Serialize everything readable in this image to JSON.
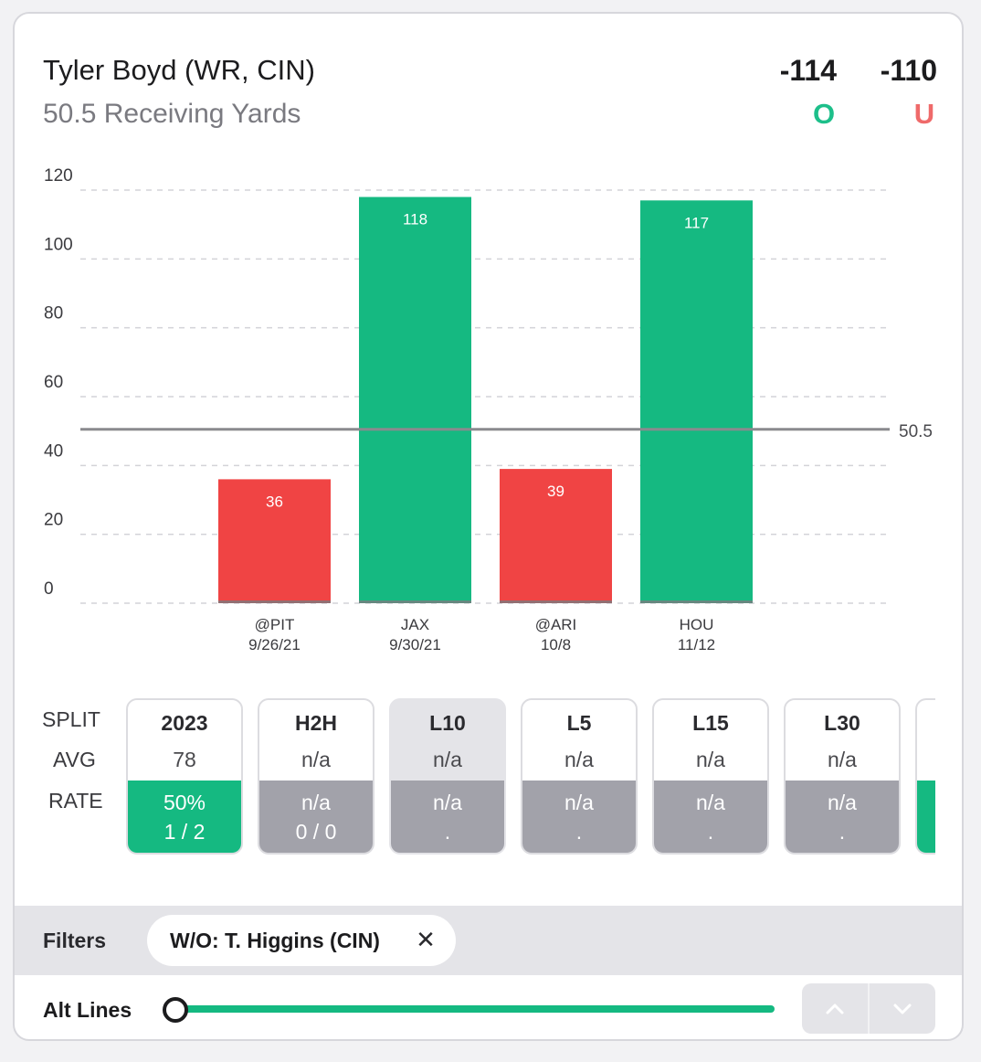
{
  "header": {
    "player": "Tyler Boyd (WR, CIN)",
    "market": "50.5 Receiving Yards",
    "over_odds": "-114",
    "under_odds": "-110",
    "over_letter": "O",
    "under_letter": "U"
  },
  "colors": {
    "over": "#15b981",
    "under": "#f04444",
    "neutral": "#a2a2aa",
    "line": "#8a8a8e"
  },
  "chart_data": {
    "type": "bar",
    "categories": [
      "@PIT",
      "JAX",
      "@ARI",
      "HOU"
    ],
    "dates": [
      "9/26/21",
      "9/30/21",
      "10/8",
      "11/12"
    ],
    "values": [
      36,
      118,
      39,
      117
    ],
    "bar_results": [
      "under",
      "over",
      "under",
      "over"
    ],
    "ylim": [
      0,
      120
    ],
    "yticks": [
      0,
      20,
      40,
      60,
      80,
      100,
      120
    ],
    "threshold": 50.5,
    "threshold_label": "50.5",
    "grid": true
  },
  "splits": {
    "labels": {
      "split": "SPLIT",
      "avg": "AVG",
      "rate": "RATE"
    },
    "items": [
      {
        "title": "2023",
        "avg": "78",
        "pct": "50%",
        "frac": "1 / 2",
        "state": "hit",
        "selected": false
      },
      {
        "title": "H2H",
        "avg": "n/a",
        "pct": "n/a",
        "frac": "0 / 0",
        "state": "none",
        "selected": false
      },
      {
        "title": "L10",
        "avg": "n/a",
        "pct": "n/a",
        "frac": ".",
        "state": "none",
        "selected": true
      },
      {
        "title": "L5",
        "avg": "n/a",
        "pct": "n/a",
        "frac": ".",
        "state": "none",
        "selected": false
      },
      {
        "title": "L15",
        "avg": "n/a",
        "pct": "n/a",
        "frac": ".",
        "state": "none",
        "selected": false
      },
      {
        "title": "L30",
        "avg": "n/a",
        "pct": "n/a",
        "frac": ".",
        "state": "none",
        "selected": false
      }
    ]
  },
  "filters": {
    "label": "Filters",
    "chip": "W/O: T. Higgins (CIN)",
    "close_glyph": "✕"
  },
  "alt_lines": {
    "label": "Alt Lines",
    "slider_position": 0
  }
}
